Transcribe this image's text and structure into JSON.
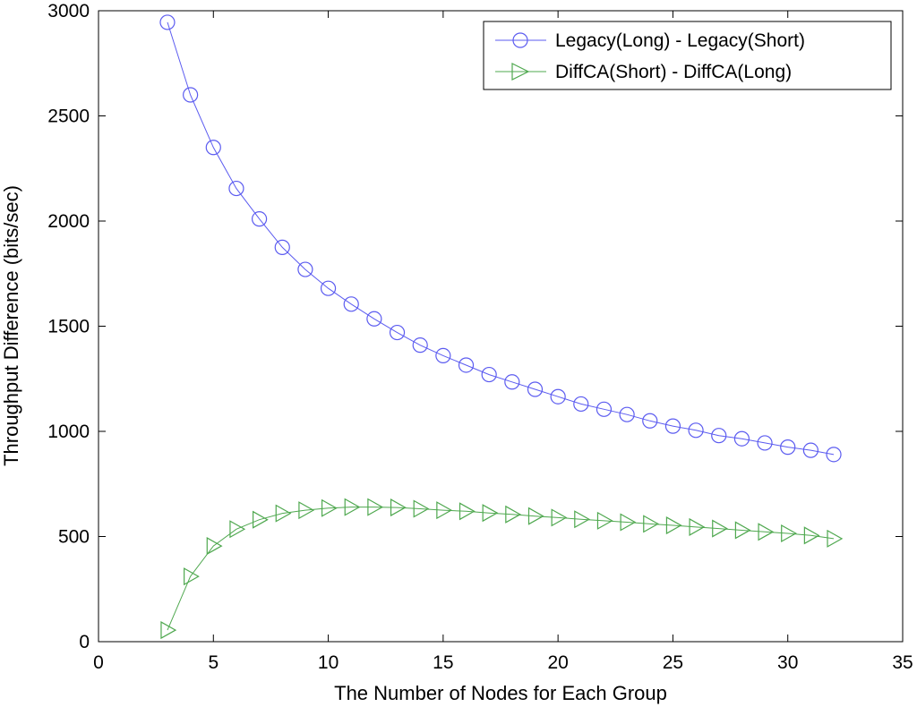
{
  "chart_data": {
    "type": "line",
    "title": "",
    "xlabel": "The Number of Nodes for Each Group",
    "ylabel": "Throughput Difference (bits/sec)",
    "xlim": [
      0,
      35
    ],
    "ylim": [
      0,
      3000
    ],
    "xticks": [
      "0",
      "5",
      "10",
      "15",
      "20",
      "25",
      "30",
      "35"
    ],
    "yticks": [
      "0",
      "500",
      "1000",
      "1500",
      "2000",
      "2500",
      "3000"
    ],
    "grid": false,
    "legend_position": "top-right",
    "x": [
      3,
      4,
      5,
      6,
      7,
      8,
      9,
      10,
      11,
      12,
      13,
      14,
      15,
      16,
      17,
      18,
      19,
      20,
      21,
      22,
      23,
      24,
      25,
      26,
      27,
      28,
      29,
      30,
      31,
      32
    ],
    "series": [
      {
        "name": "Legacy(Long) - Legacy(Short)",
        "color": "#5b5bf0",
        "marker": "circle",
        "values": [
          2945,
          2600,
          2350,
          2155,
          2010,
          1875,
          1770,
          1680,
          1605,
          1535,
          1470,
          1410,
          1360,
          1315,
          1270,
          1235,
          1200,
          1165,
          1130,
          1105,
          1080,
          1050,
          1025,
          1005,
          980,
          965,
          945,
          925,
          910,
          890
        ]
      },
      {
        "name": "DiffCA(Short) - DiffCA(Long)",
        "color": "#4fa84f",
        "marker": "triangle-right",
        "values": [
          55,
          310,
          455,
          535,
          580,
          610,
          625,
          635,
          640,
          640,
          638,
          632,
          625,
          620,
          612,
          605,
          597,
          590,
          582,
          575,
          568,
          560,
          553,
          545,
          538,
          530,
          522,
          515,
          505,
          490
        ]
      }
    ]
  }
}
